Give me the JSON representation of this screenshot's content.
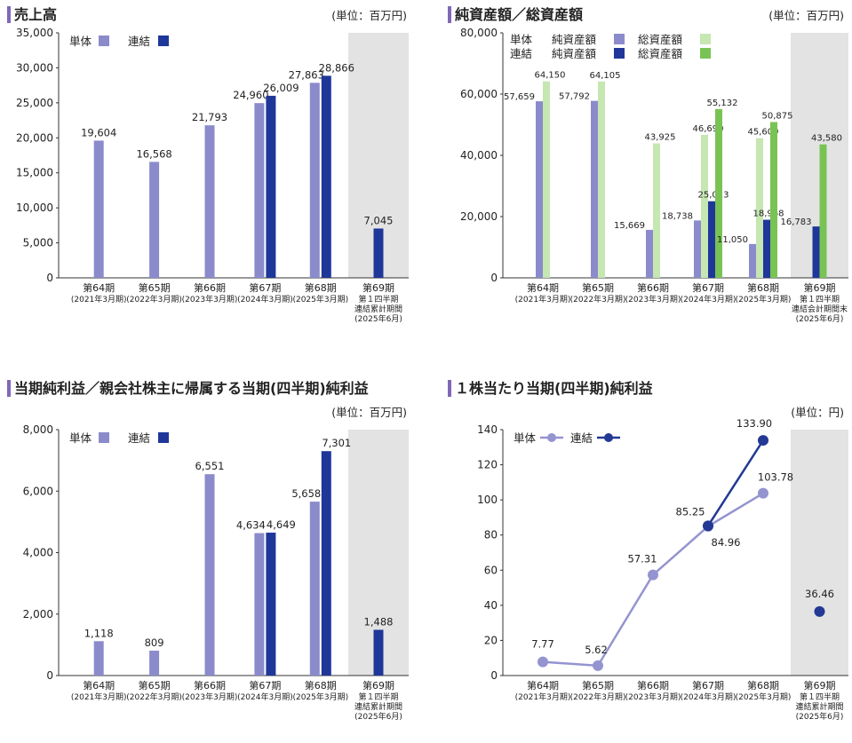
{
  "colors": {
    "tan": "#8b8bcc",
    "ren": "#1f3799",
    "net_tan": "#8b8bcc",
    "net_ren": "#1f3799",
    "total_tan": "#c6e6b2",
    "total_ren": "#79c354",
    "highlight": "#e3e3e3",
    "title_bar": "#8068b8",
    "line_tan": "#9494d0",
    "line_ren": "#233994"
  },
  "categories": [
    {
      "label": "第64期",
      "sub": [
        "(2021年3月期)"
      ]
    },
    {
      "label": "第65期",
      "sub": [
        "(2022年3月期)"
      ]
    },
    {
      "label": "第66期",
      "sub": [
        "(2023年3月期)"
      ]
    },
    {
      "label": "第67期",
      "sub": [
        "(2024年3月期)"
      ]
    },
    {
      "label": "第68期",
      "sub": [
        "(2025年3月期)"
      ]
    },
    {
      "label": "第69期",
      "sub": [
        "第１四半期",
        "連結累計期間",
        "(2025年6月)"
      ]
    }
  ],
  "categories_assets": [
    {
      "label": "第64期",
      "sub": [
        "(2021年3月期)"
      ]
    },
    {
      "label": "第65期",
      "sub": [
        "(2022年3月期)"
      ]
    },
    {
      "label": "第66期",
      "sub": [
        "(2023年3月期)"
      ]
    },
    {
      "label": "第67期",
      "sub": [
        "(2024年3月期)"
      ]
    },
    {
      "label": "第68期",
      "sub": [
        "(2025年3月期)"
      ]
    },
    {
      "label": "第69期",
      "sub": [
        "第１四半期",
        "連結会計期間末",
        "(2025年6月)"
      ]
    }
  ],
  "chart_data": [
    {
      "type": "bar",
      "title": "売上高",
      "unit": "(単位：百万円)",
      "legend": [
        "単体",
        "連結"
      ],
      "ylim": [
        0,
        35000
      ],
      "yticks": [
        "0",
        "5,000",
        "10,000",
        "15,000",
        "20,000",
        "25,000",
        "30,000",
        "35,000"
      ],
      "series": [
        {
          "name": "単体",
          "values": [
            19604,
            16568,
            21793,
            24960,
            27863,
            null
          ],
          "labels": [
            "19,604",
            "16,568",
            "21,793",
            "24,960",
            "27,863",
            ""
          ]
        },
        {
          "name": "連結",
          "values": [
            null,
            null,
            null,
            26009,
            28866,
            7045
          ],
          "labels": [
            "",
            "",
            "",
            "26,009",
            "28,866",
            "7,045"
          ]
        }
      ]
    },
    {
      "type": "bar",
      "title": "純資産額／総資産額",
      "unit": "(単位：百万円)",
      "legend_rows": [
        {
          "group": "単体",
          "items": [
            "純資産額",
            "総資産額"
          ]
        },
        {
          "group": "連結",
          "items": [
            "純資産額",
            "総資産額"
          ]
        }
      ],
      "ylim": [
        0,
        80000
      ],
      "yticks": [
        "0",
        "20,000",
        "40,000",
        "60,000",
        "80,000"
      ],
      "series": [
        {
          "name": "単体 純資産額",
          "values": [
            57659,
            57792,
            15669,
            18738,
            11050,
            null
          ],
          "labels": [
            "57,659",
            "57,792",
            "15,669",
            "18,738",
            "11,050",
            ""
          ]
        },
        {
          "name": "単体 総資産額",
          "values": [
            64150,
            64105,
            43925,
            46690,
            45609,
            null
          ],
          "labels": [
            "64,150",
            "64,105",
            "43,925",
            "46,690",
            "45,609",
            ""
          ]
        },
        {
          "name": "連結 純資産額",
          "values": [
            null,
            null,
            null,
            25013,
            18968,
            16783
          ],
          "labels": [
            "",
            "",
            "",
            "25,013",
            "18,968",
            "16,783"
          ]
        },
        {
          "name": "連結 総資産額",
          "values": [
            null,
            null,
            null,
            55132,
            50875,
            43580
          ],
          "labels": [
            "",
            "",
            "",
            "55,132",
            "50,875",
            "43,580"
          ]
        }
      ]
    },
    {
      "type": "bar",
      "title": "当期純利益／親会社株主に帰属する当期(四半期)純利益",
      "unit": "(単位：百万円)",
      "legend": [
        "単体",
        "連結"
      ],
      "ylim": [
        0,
        8000
      ],
      "yticks": [
        "0",
        "2,000",
        "4,000",
        "6,000",
        "8,000"
      ],
      "series": [
        {
          "name": "単体",
          "values": [
            1118,
            809,
            6551,
            4634,
            5658,
            null
          ],
          "labels": [
            "1,118",
            "809",
            "6,551",
            "4,634",
            "5,658",
            ""
          ]
        },
        {
          "name": "連結",
          "values": [
            null,
            null,
            null,
            4649,
            7301,
            1488
          ],
          "labels": [
            "",
            "",
            "",
            "4,649",
            "7,301",
            "1,488"
          ]
        }
      ]
    },
    {
      "type": "line",
      "title": "１株当たり当期(四半期)純利益",
      "unit": "(単位：円)",
      "legend": [
        "単体",
        "連結"
      ],
      "ylim": [
        0,
        140
      ],
      "yticks": [
        "0",
        "20",
        "40",
        "60",
        "80",
        "100",
        "120",
        "140"
      ],
      "series": [
        {
          "name": "単体",
          "values": [
            7.77,
            5.62,
            57.31,
            84.96,
            103.78,
            null
          ],
          "labels": [
            "7.77",
            "5.62",
            "57.31",
            "84.96",
            "103.78",
            ""
          ]
        },
        {
          "name": "連結",
          "values": [
            null,
            null,
            null,
            85.25,
            133.9,
            36.46
          ],
          "labels": [
            "",
            "",
            "",
            "85.25",
            "133.90",
            "36.46"
          ]
        }
      ]
    }
  ]
}
